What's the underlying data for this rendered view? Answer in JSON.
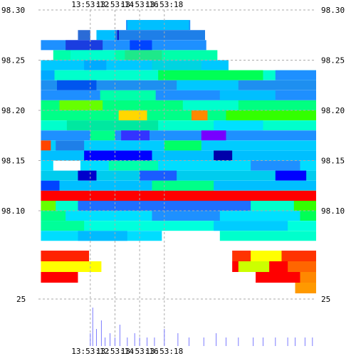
{
  "chart_data": {
    "type": "heatmap",
    "title": "",
    "time_axis": {
      "ticks": [
        "13:53:12",
        "13:53:14",
        "13:53:16",
        "13:53:18"
      ],
      "positions_label": "time",
      "grid": true
    },
    "price_axis": {
      "ticks": [
        "98.30",
        "98.25",
        "98.20",
        "98.15",
        "98.10"
      ],
      "ylim": [
        98.075,
        98.3
      ],
      "grid": true
    },
    "volume_axis": {
      "ticks": [
        "25"
      ]
    },
    "time_range_seconds": [
      -0.2,
      22.3
    ],
    "tick_seconds": [
      4,
      6,
      8,
      10
    ],
    "bands": [
      {
        "price": 98.285,
        "segments": [
          [
            6.9,
            12.1,
            "#1e90ff"
          ],
          [
            7.0,
            12.0,
            "#00bfff"
          ]
        ]
      },
      {
        "price": 98.275,
        "segments": [
          [
            3.0,
            4.0,
            "#2b6bd6"
          ],
          [
            4.5,
            6.0,
            "#00bfff"
          ],
          [
            6.0,
            13.3,
            "#1e7fe8"
          ],
          [
            6.2,
            6.3,
            "#0000cc"
          ]
        ]
      },
      {
        "price": 98.265,
        "segments": [
          [
            0.0,
            13.4,
            "#1e90ff"
          ],
          [
            2.0,
            5.0,
            "#1a3de0"
          ],
          [
            7.2,
            9.0,
            "#0044ff"
          ]
        ]
      },
      {
        "price": 98.255,
        "segments": [
          [
            1.0,
            14.3,
            "#00ffaa"
          ],
          [
            6.8,
            9.8,
            "#1ee88a"
          ],
          [
            2.4,
            6.0,
            "#00ffcc"
          ]
        ]
      },
      {
        "price": 98.245,
        "segments": [
          [
            0.0,
            15.2,
            "#00c8ff"
          ],
          [
            3.5,
            5.3,
            "#00aaff"
          ],
          [
            9.0,
            13.0,
            "#00d4e0"
          ]
        ]
      },
      {
        "price": 98.235,
        "segments": [
          [
            0.0,
            22.3,
            "#00ffcc"
          ],
          [
            9.5,
            18.0,
            "#00ff55"
          ],
          [
            0.0,
            1.1,
            "#00aaff"
          ],
          [
            19.0,
            22.3,
            "#1e90ff"
          ]
        ]
      },
      {
        "price": 98.225,
        "segments": [
          [
            0.0,
            22.3,
            "#1e8ff0"
          ],
          [
            1.3,
            4.5,
            "#0055ee"
          ],
          [
            11.0,
            16.0,
            "#00c8ff"
          ]
        ]
      },
      {
        "price": 98.215,
        "segments": [
          [
            0.0,
            22.3,
            "#1e8fff"
          ],
          [
            4.8,
            9.3,
            "#00ffaa"
          ],
          [
            14.5,
            19.0,
            "#00bfff"
          ]
        ]
      },
      {
        "price": 98.205,
        "segments": [
          [
            0.0,
            22.3,
            "#00ff80"
          ],
          [
            1.5,
            5.0,
            "#66ff00"
          ],
          [
            11.5,
            16.0,
            "#00ffcc"
          ]
        ]
      },
      {
        "price": 98.195,
        "segments": [
          [
            0.0,
            22.3,
            "#00ff88"
          ],
          [
            6.3,
            8.6,
            "#ffd700"
          ],
          [
            12.2,
            13.5,
            "#ff8800"
          ],
          [
            15.0,
            22.3,
            "#33ff00"
          ]
        ]
      },
      {
        "price": 98.185,
        "segments": [
          [
            0.0,
            22.3,
            "#00ffcc"
          ],
          [
            2.1,
            9.5,
            "#00e8a0"
          ],
          [
            14.0,
            18.0,
            "#00e0ff"
          ]
        ]
      },
      {
        "price": 98.175,
        "segments": [
          [
            0.0,
            22.3,
            "#1e90ff"
          ],
          [
            4.0,
            6.0,
            "#00ff88"
          ],
          [
            6.5,
            8.8,
            "#3333ff"
          ],
          [
            13.0,
            15.0,
            "#7700ff"
          ]
        ]
      },
      {
        "price": 98.165,
        "segments": [
          [
            0.0,
            22.3,
            "#00ccff"
          ],
          [
            0.0,
            0.8,
            "#ff4400"
          ],
          [
            1.2,
            3.5,
            "#1e7fe8"
          ],
          [
            10.0,
            13.0,
            "#00ff66"
          ]
        ]
      },
      {
        "price": 98.155,
        "segments": [
          [
            0.0,
            22.3,
            "#00bfff"
          ],
          [
            3.5,
            9.0,
            "#0000ff"
          ],
          [
            14.0,
            15.5,
            "#0000aa"
          ]
        ]
      },
      {
        "price": 98.145,
        "segments": [
          [
            0.0,
            22.3,
            "#00ddff"
          ],
          [
            1.0,
            3.2,
            "#ffffff"
          ],
          [
            5.5,
            9.5,
            "#00ffaa"
          ],
          [
            17.0,
            21.0,
            "#1e90ff"
          ]
        ]
      },
      {
        "price": 98.135,
        "segments": [
          [
            0.0,
            22.3,
            "#00ccee"
          ],
          [
            3.0,
            4.5,
            "#0000cc"
          ],
          [
            8.0,
            11.0,
            "#1a5cff"
          ],
          [
            19.0,
            21.5,
            "#0000ff"
          ]
        ]
      },
      {
        "price": 98.125,
        "segments": [
          [
            0.0,
            22.3,
            "#00bfff"
          ],
          [
            0.0,
            1.5,
            "#0044ff"
          ],
          [
            9.0,
            14.0,
            "#00ff88"
          ]
        ]
      },
      {
        "price": 98.115,
        "segments": [
          [
            0.0,
            22.3,
            "#ff0000"
          ],
          [
            19.5,
            22.3,
            "#9aff00"
          ]
        ]
      },
      {
        "price": 98.105,
        "segments": [
          [
            0.0,
            22.3,
            "#00ffcc"
          ],
          [
            3.0,
            17.0,
            "#1e6fff"
          ],
          [
            0.0,
            1.2,
            "#66ff00"
          ],
          [
            20.5,
            22.3,
            "#33ff00"
          ]
        ]
      },
      {
        "price": 98.095,
        "segments": [
          [
            0.0,
            22.3,
            "#00e0ff"
          ],
          [
            0.0,
            2.0,
            "#00ff88"
          ],
          [
            9.0,
            14.5,
            "#1e90ff"
          ],
          [
            21.0,
            22.3,
            "#00ff55"
          ]
        ]
      },
      {
        "price": 98.085,
        "segments": [
          [
            0.0,
            22.3,
            "#00ffdd"
          ],
          [
            0.0,
            3.5,
            "#00ff99"
          ],
          [
            14.0,
            20.0,
            "#00ccff"
          ]
        ]
      },
      {
        "price": 98.075,
        "segments": [
          [
            0.0,
            9.8,
            "#00ddff"
          ],
          [
            14.5,
            22.3,
            "#00ffcc"
          ],
          [
            3.0,
            7.0,
            "#00bbff"
          ]
        ]
      }
    ],
    "lower_bands": [
      {
        "row": 0,
        "segments": [
          [
            0.0,
            22.3,
            "#ff0000"
          ]
        ]
      },
      {
        "row": 1,
        "segments": [
          [
            0.0,
            3.9,
            "#ff2200"
          ],
          [
            15.5,
            22.3,
            "#ff3300"
          ],
          [
            17.0,
            19.5,
            "#ffff00"
          ]
        ]
      },
      {
        "row": 2,
        "segments": [
          [
            0.0,
            4.9,
            "#ffff00"
          ],
          [
            15.5,
            22.3,
            "#ff0000"
          ],
          [
            20.0,
            22.3,
            "#ff6600"
          ],
          [
            16.0,
            18.5,
            "#ccff00"
          ]
        ]
      },
      {
        "row": 3,
        "segments": [
          [
            0.0,
            3.0,
            "#ff0000"
          ],
          [
            17.4,
            22.3,
            "#ff0000"
          ],
          [
            21.0,
            22.3,
            "#ff8800"
          ]
        ]
      },
      {
        "row": 4,
        "segments": [
          [
            20.6,
            22.3,
            "#ff9900"
          ]
        ]
      }
    ],
    "volumes": [
      [
        4.0,
        0.3
      ],
      [
        4.2,
        0.9
      ],
      [
        4.5,
        0.4
      ],
      [
        4.9,
        0.6
      ],
      [
        5.2,
        0.2
      ],
      [
        5.6,
        0.3
      ],
      [
        6.0,
        0.2
      ],
      [
        6.4,
        0.5
      ],
      [
        7.0,
        0.2
      ],
      [
        7.6,
        0.3
      ],
      [
        8.0,
        0.2
      ],
      [
        8.6,
        0.2
      ],
      [
        9.2,
        0.2
      ],
      [
        10.0,
        0.4
      ],
      [
        11.1,
        0.3
      ],
      [
        12.0,
        0.2
      ],
      [
        13.2,
        0.2
      ],
      [
        14.2,
        0.3
      ],
      [
        15.0,
        0.2
      ],
      [
        16.0,
        0.2
      ],
      [
        17.2,
        0.2
      ],
      [
        18.0,
        0.2
      ],
      [
        19.0,
        0.2
      ],
      [
        20.0,
        0.2
      ],
      [
        20.6,
        0.2
      ],
      [
        21.4,
        0.2
      ],
      [
        22.0,
        0.2
      ]
    ]
  }
}
